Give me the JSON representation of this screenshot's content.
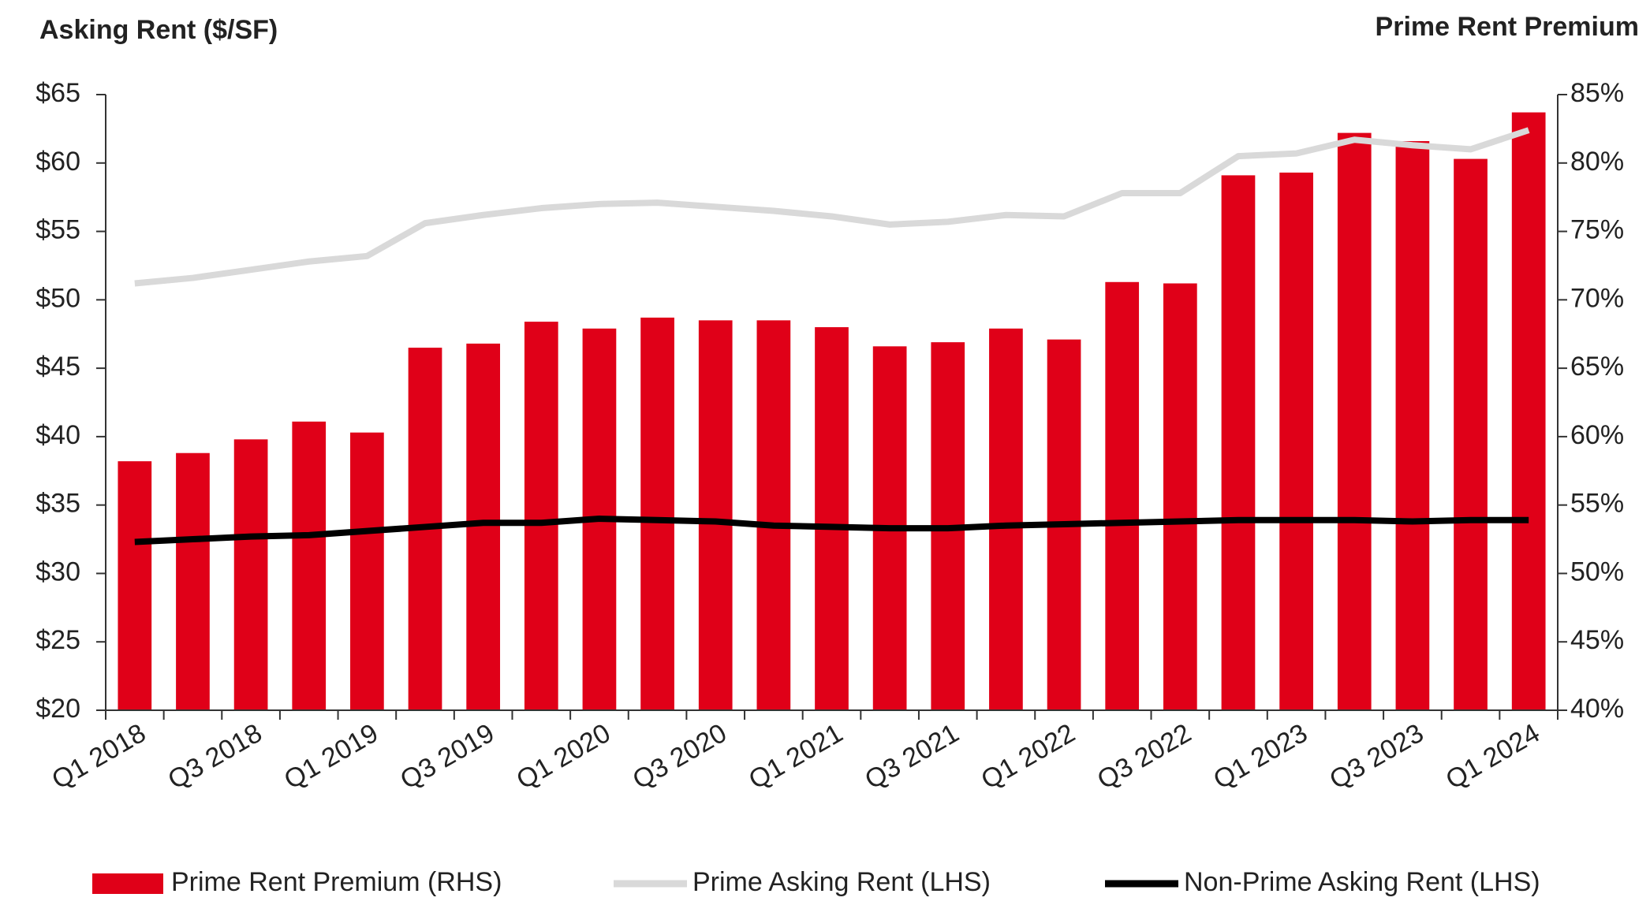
{
  "chart_data": {
    "type": "bar-line",
    "title_left": "Asking Rent ($/SF)",
    "title_right": "Prime Rent Premium",
    "categories": [
      "Q1 2018",
      null,
      "Q3 2018",
      null,
      "Q1 2019",
      null,
      "Q3 2019",
      null,
      "Q1 2020",
      null,
      "Q3 2020",
      null,
      "Q1 2021",
      null,
      "Q3 2021",
      null,
      "Q1 2022",
      null,
      "Q3 2022",
      null,
      "Q1 2023",
      null,
      "Q3 2023",
      null,
      "Q1 2024"
    ],
    "series": [
      {
        "name": "Prime Rent Premium (RHS)",
        "type": "bar",
        "axis": "y2",
        "color": "#e00018",
        "values": [
          58.2,
          58.8,
          59.8,
          61.1,
          60.3,
          66.5,
          66.8,
          68.4,
          67.9,
          68.7,
          68.5,
          68.5,
          68.0,
          66.6,
          66.9,
          67.9,
          67.1,
          71.3,
          71.2,
          79.1,
          79.3,
          82.2,
          81.6,
          80.3,
          83.7
        ]
      },
      {
        "name": "Prime Asking Rent (LHS)",
        "type": "line",
        "axis": "y",
        "color": "#d9d9d9",
        "values": [
          51.2,
          51.6,
          52.2,
          52.8,
          53.2,
          55.6,
          56.2,
          56.7,
          57.0,
          57.1,
          56.8,
          56.5,
          56.1,
          55.5,
          55.7,
          56.2,
          56.1,
          57.8,
          57.8,
          60.5,
          60.7,
          61.7,
          61.3,
          61.0,
          62.4
        ]
      },
      {
        "name": "Non-Prime Asking Rent (LHS)",
        "type": "line",
        "axis": "y",
        "color": "#000000",
        "values": [
          32.3,
          32.5,
          32.7,
          32.8,
          33.1,
          33.4,
          33.7,
          33.7,
          34.0,
          33.9,
          33.8,
          33.5,
          33.4,
          33.3,
          33.3,
          33.5,
          33.6,
          33.7,
          33.8,
          33.9,
          33.9,
          33.9,
          33.8,
          33.9,
          33.9
        ]
      }
    ],
    "ylim": [
      20,
      65
    ],
    "yticks": [
      {
        "value": 20,
        "label": "$20"
      },
      {
        "value": 25,
        "label": "$25"
      },
      {
        "value": 30,
        "label": "$30"
      },
      {
        "value": 35,
        "label": "$35"
      },
      {
        "value": 40,
        "label": "$40"
      },
      {
        "value": 45,
        "label": "$45"
      },
      {
        "value": 50,
        "label": "$50"
      },
      {
        "value": 55,
        "label": "$55"
      },
      {
        "value": 60,
        "label": "$60"
      },
      {
        "value": 65,
        "label": "$65"
      }
    ],
    "y2lim": [
      40,
      85
    ],
    "y2ticks": [
      {
        "value": 40,
        "label": "40%"
      },
      {
        "value": 45,
        "label": "45%"
      },
      {
        "value": 50,
        "label": "50%"
      },
      {
        "value": 55,
        "label": "55%"
      },
      {
        "value": 60,
        "label": "60%"
      },
      {
        "value": 65,
        "label": "65%"
      },
      {
        "value": 70,
        "label": "70%"
      },
      {
        "value": 75,
        "label": "75%"
      },
      {
        "value": 80,
        "label": "80%"
      },
      {
        "value": 85,
        "label": "85%"
      }
    ],
    "grid": false,
    "legend": "bottom"
  }
}
